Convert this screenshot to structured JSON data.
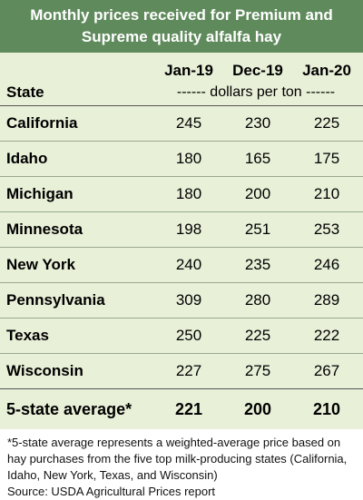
{
  "title": "Monthly prices received for Premium and Supreme quality alfalfa hay",
  "header": {
    "state_label": "State",
    "columns": [
      "Jan-19",
      "Dec-19",
      "Jan-20"
    ],
    "units": "------ dollars per ton ------"
  },
  "rows": [
    {
      "state": "California",
      "values": [
        "245",
        "230",
        "225"
      ]
    },
    {
      "state": "Idaho",
      "values": [
        "180",
        "165",
        "175"
      ]
    },
    {
      "state": "Michigan",
      "values": [
        "180",
        "200",
        "210"
      ]
    },
    {
      "state": "Minnesota",
      "values": [
        "198",
        "251",
        "253"
      ]
    },
    {
      "state": "New York",
      "values": [
        "240",
        "235",
        "246"
      ]
    },
    {
      "state": "Pennsylvania",
      "values": [
        "309",
        "280",
        "289"
      ]
    },
    {
      "state": "Texas",
      "values": [
        "250",
        "225",
        "222"
      ]
    },
    {
      "state": "Wisconsin",
      "values": [
        "227",
        "275",
        "267"
      ]
    }
  ],
  "average": {
    "label": "5-state average*",
    "values": [
      "221",
      "200",
      "210"
    ]
  },
  "footnote": "*5-state average represents  a weighted-average price based on hay purchases from the five top milk-producing states (California, Idaho, New York, Texas, and Wisconsin)",
  "source": "Source: USDA Agricultural Prices report",
  "colors": {
    "title_bg": "#5f8a5c",
    "table_bg": "#e8f0d8"
  }
}
